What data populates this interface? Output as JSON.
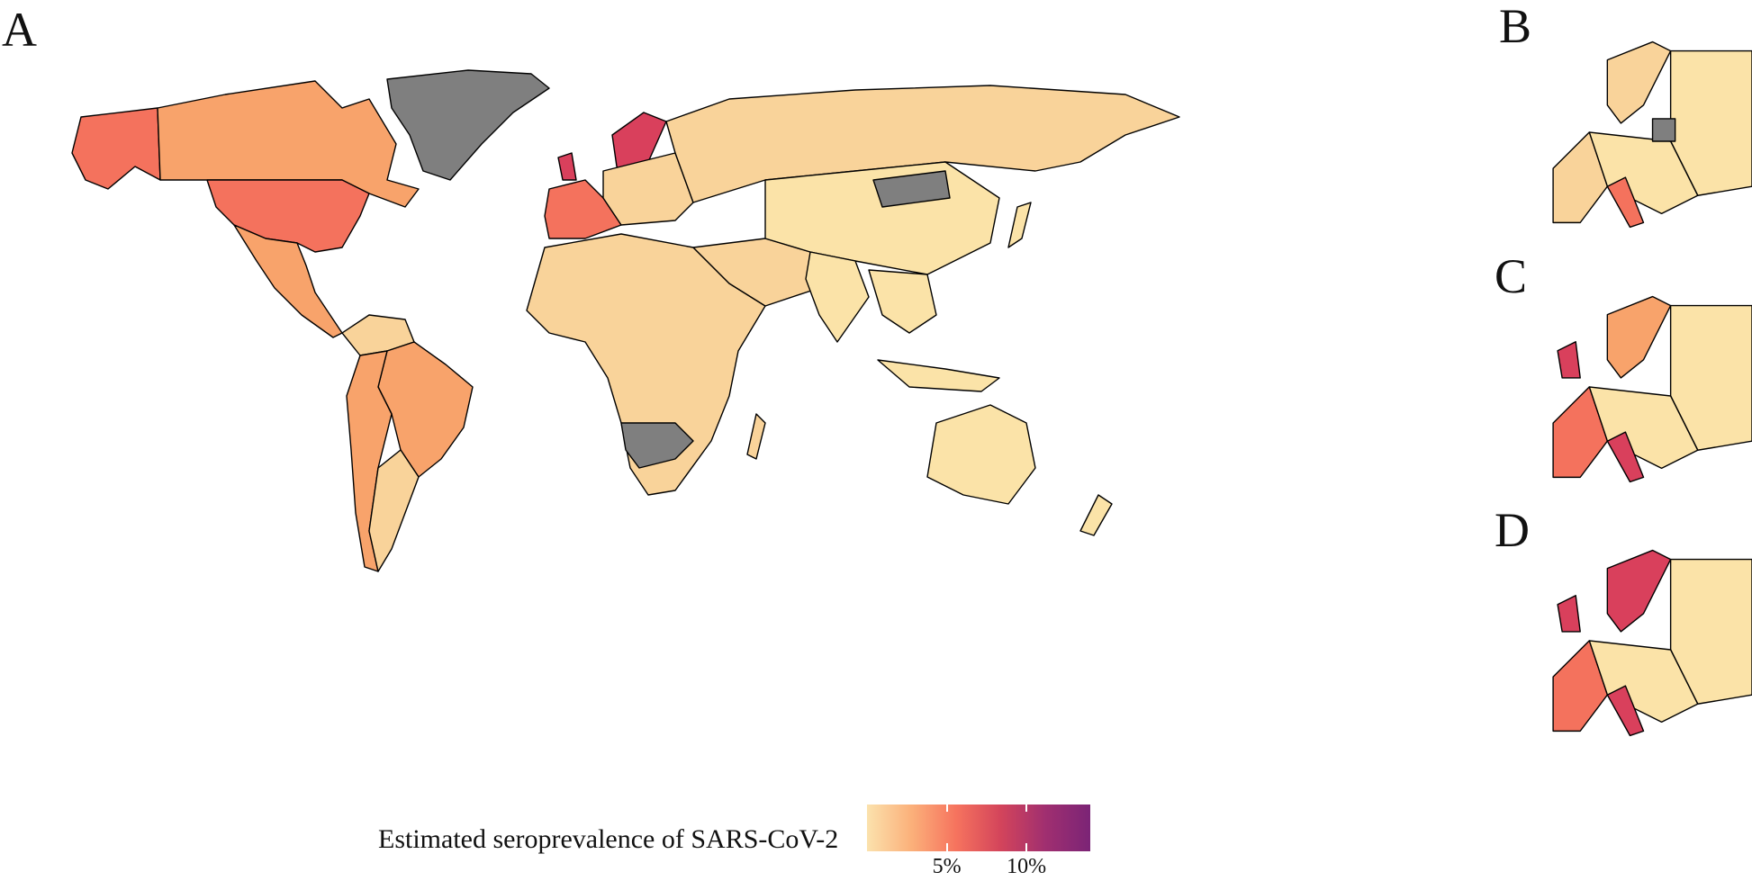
{
  "panels": {
    "a": "A",
    "b": "B",
    "c": "C",
    "d": "D"
  },
  "legend": {
    "title": "Estimated seroprevalence of SARS-CoV-2",
    "ticks": [
      {
        "label": "5%",
        "value": 5
      },
      {
        "label": "10%",
        "value": 10
      }
    ],
    "range": [
      0,
      14
    ],
    "gradient": [
      "#fbe2ad",
      "#fbb07a",
      "#f6735e",
      "#d3445b",
      "#a02f70",
      "#7b2476"
    ]
  },
  "colors": {
    "very_low": "#fbe3a8",
    "low": "#f9d39a",
    "mid": "#f8a36b",
    "high": "#f4725d",
    "very_high": "#d9405c",
    "no_data": "#7f7f7f"
  }
}
